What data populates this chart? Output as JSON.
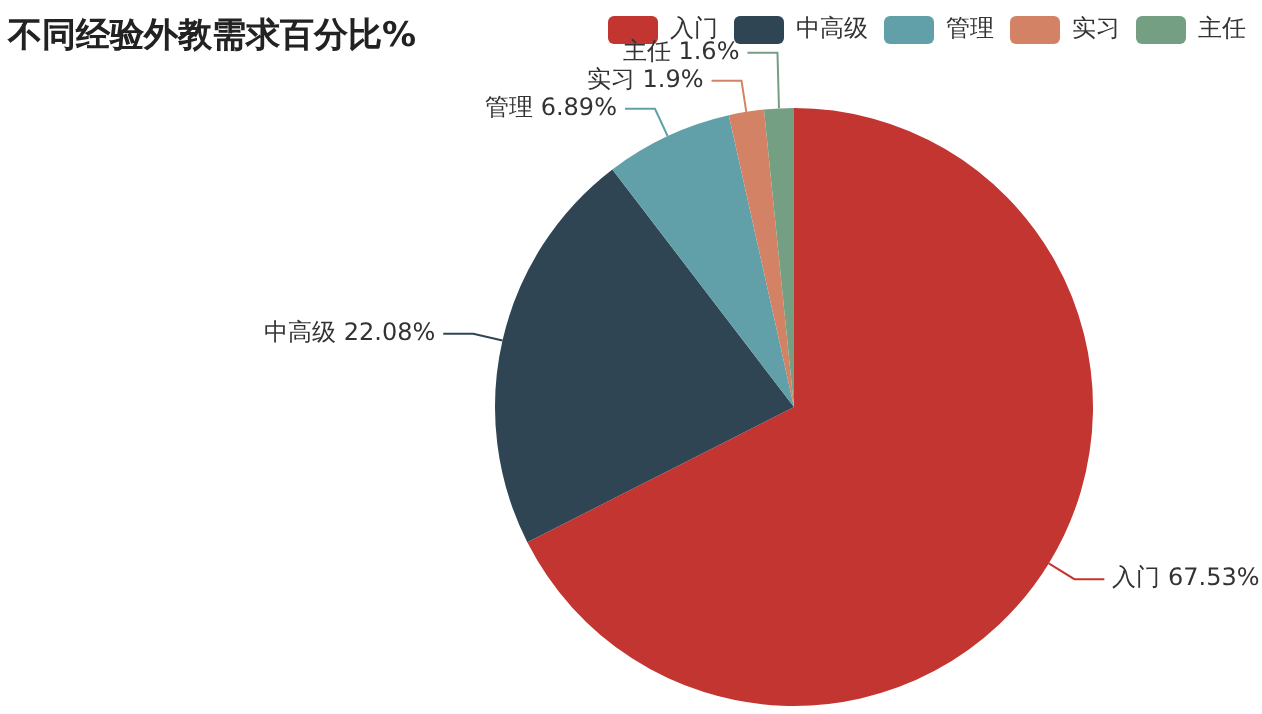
{
  "chart_data": {
    "type": "pie",
    "title": "不同经验外教需求百分比%",
    "categories": [
      "入门",
      "中高级",
      "管理",
      "实习",
      "主任"
    ],
    "values": [
      67.53,
      22.08,
      6.89,
      1.9,
      1.6
    ],
    "colors": [
      "#c23531",
      "#2f4554",
      "#61a0a8",
      "#d48265",
      "#749f83"
    ],
    "value_labels": [
      "入门 67.53%",
      "中高级 22.08%",
      "管理 6.89%",
      "实习 1.9%",
      "主任 1.6%"
    ],
    "legend": "top right"
  }
}
